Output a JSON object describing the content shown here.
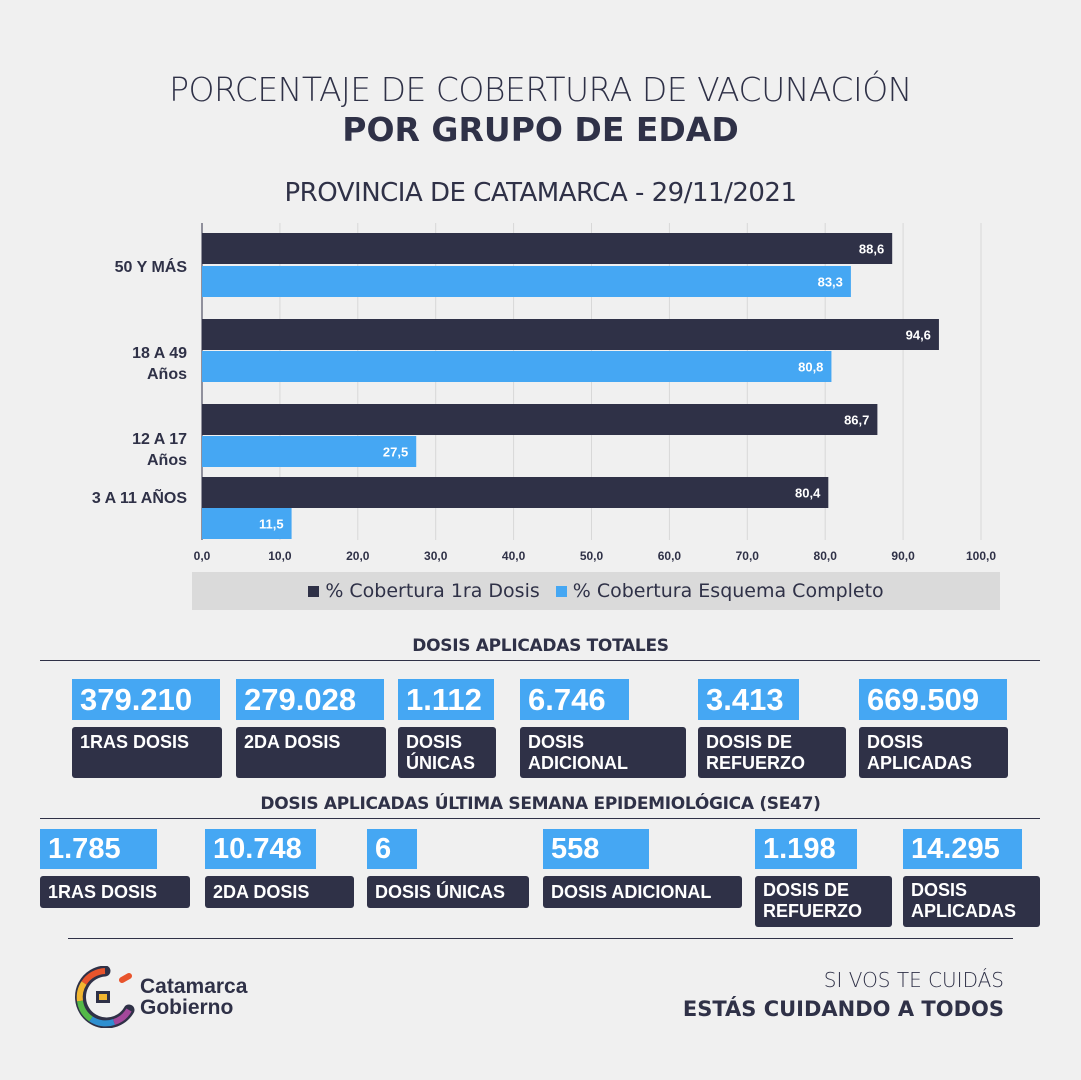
{
  "header": {
    "title_line1": "PORCENTAJE DE COBERTURA DE VACUNACIÓN",
    "title_line2": "POR GRUPO DE EDAD",
    "subtitle": "PROVINCIA DE CATAMARCA - 29/11/2021"
  },
  "chart_data": {
    "type": "bar",
    "orientation": "horizontal",
    "categories": [
      "50 Y MÁS",
      "18 A 49 Años",
      "12 A 17 Años",
      "3 A 11 AÑOS"
    ],
    "series": [
      {
        "name": "% Cobertura 1ra Dosis",
        "color": "#2f3147",
        "values": [
          88.6,
          94.6,
          86.7,
          80.4
        ],
        "labels": [
          "88,6",
          "94,6",
          "86,7",
          "80,4"
        ]
      },
      {
        "name": "% Cobertura Esquema Completo",
        "color": "#45a7f3",
        "values": [
          83.3,
          80.8,
          27.5,
          11.5
        ],
        "labels": [
          "83,3",
          "80,8",
          "27,5",
          "11,5"
        ]
      }
    ],
    "xlim": [
      0,
      100
    ],
    "xticks": [
      "0,0",
      "10,0",
      "20,0",
      "30,0",
      "40,0",
      "50,0",
      "60,0",
      "70,0",
      "80,0",
      "90,0",
      "100,0"
    ],
    "grid": true,
    "legend": "bottom"
  },
  "totals": {
    "title": "DOSIS APLICADAS TOTALES",
    "items": [
      {
        "value": "379.210",
        "label": "1RAS DOSIS"
      },
      {
        "value": "279.028",
        "label": "2DA DOSIS"
      },
      {
        "value": "1.112",
        "label": "DOSIS ÚNICAS"
      },
      {
        "value": "6.746",
        "label": "DOSIS ADICIONAL"
      },
      {
        "value": "3.413",
        "label": "DOSIS DE REFUERZO"
      },
      {
        "value": "669.509",
        "label": "DOSIS APLICADAS"
      }
    ]
  },
  "weekly": {
    "title": "DOSIS APLICADAS ÚLTIMA SEMANA EPIDEMIOLÓGICA (SE47)",
    "items": [
      {
        "value": "1.785",
        "label": "1RAS DOSIS"
      },
      {
        "value": "10.748",
        "label": "2DA DOSIS"
      },
      {
        "value": "6",
        "label": "DOSIS ÚNICAS"
      },
      {
        "value": "558",
        "label": "DOSIS ADICIONAL"
      },
      {
        "value": "1.198",
        "label": "DOSIS DE REFUERZO"
      },
      {
        "value": "14.295",
        "label": "DOSIS APLICADAS"
      }
    ]
  },
  "footer": {
    "logo_line1": "Catamarca",
    "logo_line2": "Gobierno",
    "slogan_line1": "SI VOS TE CUIDÁS",
    "slogan_line2": "ESTÁS CUIDANDO A TODOS"
  }
}
